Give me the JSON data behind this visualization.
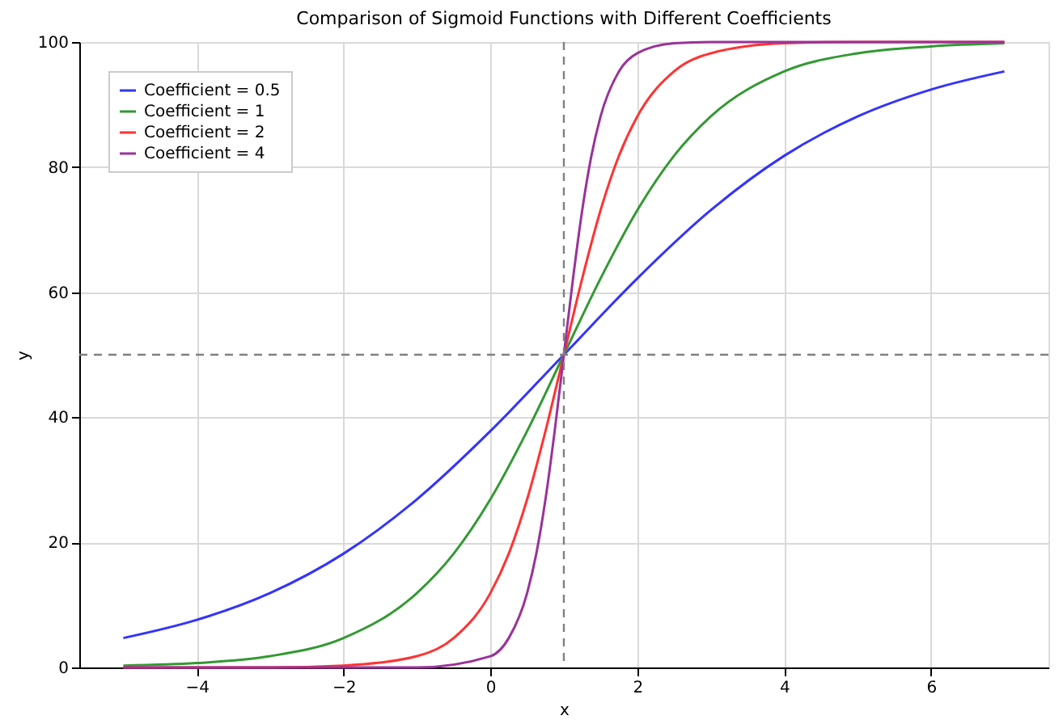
{
  "chart_data": {
    "type": "line",
    "title": "Comparison of Sigmoid Functions with Different Coefficients",
    "xlabel": "x",
    "ylabel": "y",
    "xlim": [
      -5.6,
      7.6
    ],
    "xticks": [
      -4,
      -2,
      0,
      2,
      4,
      6
    ],
    "ylim": [
      0,
      100
    ],
    "yticks": [
      0,
      20,
      40,
      60,
      80,
      100
    ],
    "grid": true,
    "legend": "top left",
    "line_style": "solid",
    "marker": "none",
    "series": [
      {
        "name": "Coefficient = 0.5",
        "color": "#3333ff",
        "x": [
          -5,
          -4,
          -3,
          -2,
          -1,
          0,
          1,
          2,
          3,
          4,
          5,
          6,
          7
        ],
        "values": [
          4.7,
          7.6,
          11.9,
          18.2,
          26.9,
          37.8,
          50,
          62.2,
          73.1,
          81.8,
          88.1,
          92.4,
          95.3
        ]
      },
      {
        "name": "Coefficient = 1",
        "color": "#339933",
        "x": [
          -5,
          -4,
          -3,
          -2,
          -1,
          -0.5,
          0,
          0.5,
          1,
          1.5,
          2,
          2.5,
          3,
          4,
          5,
          6,
          7
        ],
        "values": [
          0.3,
          0.7,
          1.8,
          4.7,
          11.9,
          18.2,
          26.9,
          37.8,
          50,
          62.2,
          73.1,
          81.8,
          88.1,
          95.3,
          98.2,
          99.3,
          99.8
        ]
      },
      {
        "name": "Coefficient = 2",
        "color": "#ff3333",
        "x": [
          -5,
          -3,
          -2,
          -1,
          -0.5,
          0,
          0.25,
          0.5,
          0.75,
          1,
          1.25,
          1.5,
          1.75,
          2,
          2.5,
          3,
          4,
          5,
          7
        ],
        "values": [
          0,
          0,
          0.3,
          1.8,
          4.7,
          11.9,
          18.2,
          26.9,
          37.8,
          50,
          62.2,
          73.1,
          81.8,
          88.1,
          95.3,
          98.2,
          99.8,
          100,
          100
        ]
      },
      {
        "name": "Coefficient = 4",
        "color": "#993399",
        "x": [
          -5,
          -1,
          0,
          0.25,
          0.5,
          0.625,
          0.75,
          0.875,
          1,
          1.125,
          1.25,
          1.375,
          1.5,
          1.75,
          2,
          2.5,
          3,
          7
        ],
        "values": [
          0,
          0,
          1.8,
          4.7,
          11.9,
          18.2,
          26.9,
          37.8,
          50,
          62.2,
          73.1,
          81.8,
          88.1,
          95.3,
          98.2,
          99.8,
          100,
          100
        ]
      }
    ],
    "ref_lines": [
      {
        "axis": "x",
        "value": 1,
        "label": null,
        "color": "#808080",
        "line_style": "dashed"
      },
      {
        "axis": "y",
        "value": 50,
        "label": null,
        "color": "#808080",
        "line_style": "dashed"
      }
    ]
  }
}
